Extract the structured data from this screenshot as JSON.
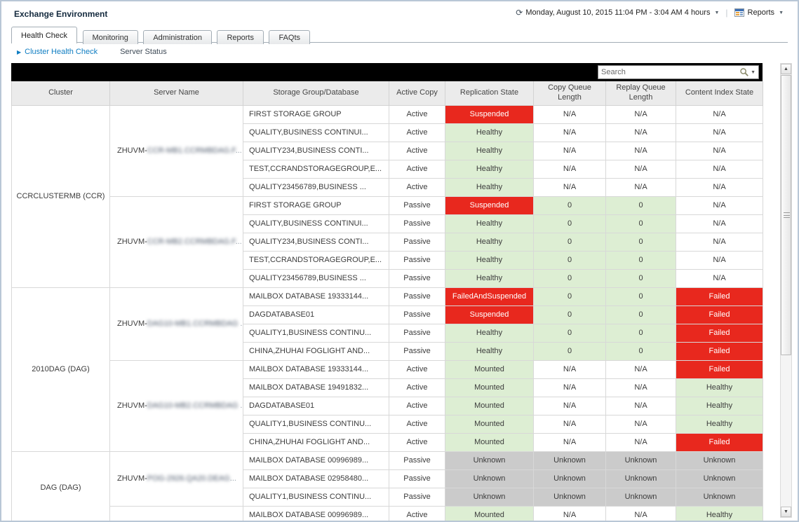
{
  "header": {
    "title": "Exchange Environment",
    "timerange": "Monday, August 10, 2015 11:04 PM - 3:04 AM 4 hours",
    "reports_label": "Reports"
  },
  "icons": {
    "timerange_glyph": "⟳",
    "caret_glyph": "▼",
    "subnav_triangle": "▶",
    "scroll_up": "▲",
    "scroll_down": "▼"
  },
  "colors": {
    "status_red": "#e8281e",
    "status_green": "#ddeed3",
    "status_gray": "#cbcbcb",
    "link_blue": "#0f7dc2",
    "toolbar_black": "#000000"
  },
  "tabs": [
    {
      "label": "Health Check",
      "active": true
    },
    {
      "label": "Monitoring",
      "active": false
    },
    {
      "label": "Administration",
      "active": false
    },
    {
      "label": "Reports",
      "active": false
    },
    {
      "label": "FAQts",
      "active": false
    }
  ],
  "subnav": {
    "active_item": "Cluster Health Check",
    "other_item": "Server Status"
  },
  "search": {
    "placeholder": "Search"
  },
  "table": {
    "columns": [
      "Cluster",
      "Server Name",
      "Storage Group/Database",
      "Active Copy",
      "Replication State",
      "Copy Queue Length",
      "Replay Queue Length",
      "Content Index State"
    ],
    "groups": [
      {
        "cluster": "CCRCLUSTERMB (CCR)",
        "servers": [
          {
            "name_prefix": "ZHUVM-",
            "name_blur": "CCR-MB1.CCRMBDAG.F",
            "name_suffix": "...",
            "rows": [
              {
                "sg": "FIRST STORAGE GROUP",
                "copy": "Active",
                "rs": {
                  "t": "Suspended",
                  "s": "red"
                },
                "cq": {
                  "t": "N/A",
                  "s": "plain"
                },
                "rq": {
                  "t": "N/A",
                  "s": "plain"
                },
                "ci": {
                  "t": "N/A",
                  "s": "plain"
                }
              },
              {
                "sg": "QUALITY,BUSINESS CONTINUI...",
                "copy": "Active",
                "rs": {
                  "t": "Healthy",
                  "s": "green"
                },
                "cq": {
                  "t": "N/A",
                  "s": "plain"
                },
                "rq": {
                  "t": "N/A",
                  "s": "plain"
                },
                "ci": {
                  "t": "N/A",
                  "s": "plain"
                }
              },
              {
                "sg": "QUALITY234,BUSINESS CONTI...",
                "copy": "Active",
                "rs": {
                  "t": "Healthy",
                  "s": "green"
                },
                "cq": {
                  "t": "N/A",
                  "s": "plain"
                },
                "rq": {
                  "t": "N/A",
                  "s": "plain"
                },
                "ci": {
                  "t": "N/A",
                  "s": "plain"
                }
              },
              {
                "sg": "TEST,CCRANDSTORAGEGROUP,E...",
                "copy": "Active",
                "rs": {
                  "t": "Healthy",
                  "s": "green"
                },
                "cq": {
                  "t": "N/A",
                  "s": "plain"
                },
                "rq": {
                  "t": "N/A",
                  "s": "plain"
                },
                "ci": {
                  "t": "N/A",
                  "s": "plain"
                }
              },
              {
                "sg": "QUALITY23456789,BUSINESS ...",
                "copy": "Active",
                "rs": {
                  "t": "Healthy",
                  "s": "green"
                },
                "cq": {
                  "t": "N/A",
                  "s": "plain"
                },
                "rq": {
                  "t": "N/A",
                  "s": "plain"
                },
                "ci": {
                  "t": "N/A",
                  "s": "plain"
                }
              }
            ]
          },
          {
            "name_prefix": "ZHUVM-",
            "name_blur": "CCR-MB2.CCRMBDAG.F",
            "name_suffix": "...",
            "rows": [
              {
                "sg": "FIRST STORAGE GROUP",
                "copy": "Passive",
                "rs": {
                  "t": "Suspended",
                  "s": "red"
                },
                "cq": {
                  "t": "0",
                  "s": "green"
                },
                "rq": {
                  "t": "0",
                  "s": "green"
                },
                "ci": {
                  "t": "N/A",
                  "s": "plain"
                }
              },
              {
                "sg": "QUALITY,BUSINESS CONTINUI...",
                "copy": "Passive",
                "rs": {
                  "t": "Healthy",
                  "s": "green"
                },
                "cq": {
                  "t": "0",
                  "s": "green"
                },
                "rq": {
                  "t": "0",
                  "s": "green"
                },
                "ci": {
                  "t": "N/A",
                  "s": "plain"
                }
              },
              {
                "sg": "QUALITY234,BUSINESS CONTI...",
                "copy": "Passive",
                "rs": {
                  "t": "Healthy",
                  "s": "green"
                },
                "cq": {
                  "t": "0",
                  "s": "green"
                },
                "rq": {
                  "t": "0",
                  "s": "green"
                },
                "ci": {
                  "t": "N/A",
                  "s": "plain"
                }
              },
              {
                "sg": "TEST,CCRANDSTORAGEGROUP,E...",
                "copy": "Passive",
                "rs": {
                  "t": "Healthy",
                  "s": "green"
                },
                "cq": {
                  "t": "0",
                  "s": "green"
                },
                "rq": {
                  "t": "0",
                  "s": "green"
                },
                "ci": {
                  "t": "N/A",
                  "s": "plain"
                }
              },
              {
                "sg": "QUALITY23456789,BUSINESS ...",
                "copy": "Passive",
                "rs": {
                  "t": "Healthy",
                  "s": "green"
                },
                "cq": {
                  "t": "0",
                  "s": "green"
                },
                "rq": {
                  "t": "0",
                  "s": "green"
                },
                "ci": {
                  "t": "N/A",
                  "s": "plain"
                }
              }
            ]
          }
        ]
      },
      {
        "cluster": "2010DAG (DAG)",
        "servers": [
          {
            "name_prefix": "ZHUVM-",
            "name_blur": "DAG10-MB1.CCRMBDAG",
            "name_suffix": " ..",
            "rows": [
              {
                "sg": "MAILBOX DATABASE 19333144...",
                "copy": "Passive",
                "rs": {
                  "t": "FailedAndSuspended",
                  "s": "red"
                },
                "cq": {
                  "t": "0",
                  "s": "green"
                },
                "rq": {
                  "t": "0",
                  "s": "green"
                },
                "ci": {
                  "t": "Failed",
                  "s": "red"
                }
              },
              {
                "sg": "DAGDATABASE01",
                "copy": "Passive",
                "rs": {
                  "t": "Suspended",
                  "s": "red"
                },
                "cq": {
                  "t": "0",
                  "s": "green"
                },
                "rq": {
                  "t": "0",
                  "s": "green"
                },
                "ci": {
                  "t": "Failed",
                  "s": "red"
                }
              },
              {
                "sg": "QUALITY1,BUSINESS CONTINU...",
                "copy": "Passive",
                "rs": {
                  "t": "Healthy",
                  "s": "green"
                },
                "cq": {
                  "t": "0",
                  "s": "green"
                },
                "rq": {
                  "t": "0",
                  "s": "green"
                },
                "ci": {
                  "t": "Failed",
                  "s": "red"
                }
              },
              {
                "sg": "CHINA,ZHUHAI FOGLIGHT AND...",
                "copy": "Passive",
                "rs": {
                  "t": "Healthy",
                  "s": "green"
                },
                "cq": {
                  "t": "0",
                  "s": "green"
                },
                "rq": {
                  "t": "0",
                  "s": "green"
                },
                "ci": {
                  "t": "Failed",
                  "s": "red"
                }
              }
            ]
          },
          {
            "name_prefix": "ZHUVM-",
            "name_blur": "DAG10-MB2.CCRMBDAG",
            "name_suffix": " ..",
            "rows": [
              {
                "sg": "MAILBOX DATABASE 19333144...",
                "copy": "Active",
                "rs": {
                  "t": "Mounted",
                  "s": "green"
                },
                "cq": {
                  "t": "N/A",
                  "s": "plain"
                },
                "rq": {
                  "t": "N/A",
                  "s": "plain"
                },
                "ci": {
                  "t": "Failed",
                  "s": "red"
                }
              },
              {
                "sg": "MAILBOX DATABASE 19491832...",
                "copy": "Active",
                "rs": {
                  "t": "Mounted",
                  "s": "green"
                },
                "cq": {
                  "t": "N/A",
                  "s": "plain"
                },
                "rq": {
                  "t": "N/A",
                  "s": "plain"
                },
                "ci": {
                  "t": "Healthy",
                  "s": "green"
                }
              },
              {
                "sg": "DAGDATABASE01",
                "copy": "Active",
                "rs": {
                  "t": "Mounted",
                  "s": "green"
                },
                "cq": {
                  "t": "N/A",
                  "s": "plain"
                },
                "rq": {
                  "t": "N/A",
                  "s": "plain"
                },
                "ci": {
                  "t": "Healthy",
                  "s": "green"
                }
              },
              {
                "sg": "QUALITY1,BUSINESS CONTINU...",
                "copy": "Active",
                "rs": {
                  "t": "Mounted",
                  "s": "green"
                },
                "cq": {
                  "t": "N/A",
                  "s": "plain"
                },
                "rq": {
                  "t": "N/A",
                  "s": "plain"
                },
                "ci": {
                  "t": "Healthy",
                  "s": "green"
                }
              },
              {
                "sg": "CHINA,ZHUHAI FOGLIGHT AND...",
                "copy": "Active",
                "rs": {
                  "t": "Mounted",
                  "s": "green"
                },
                "cq": {
                  "t": "N/A",
                  "s": "plain"
                },
                "rq": {
                  "t": "N/A",
                  "s": "plain"
                },
                "ci": {
                  "t": "Failed",
                  "s": "red"
                }
              }
            ]
          }
        ]
      },
      {
        "cluster": "DAG (DAG)",
        "servers": [
          {
            "name_prefix": "ZHUVM-",
            "name_blur": "POG-2926.QA20.DEAG",
            "name_suffix": "...",
            "rows": [
              {
                "sg": "MAILBOX DATABASE 00996989...",
                "copy": "Passive",
                "rs": {
                  "t": "Unknown",
                  "s": "gray"
                },
                "cq": {
                  "t": "Unknown",
                  "s": "gray"
                },
                "rq": {
                  "t": "Unknown",
                  "s": "gray"
                },
                "ci": {
                  "t": "Unknown",
                  "s": "gray"
                }
              },
              {
                "sg": "MAILBOX DATABASE 02958480...",
                "copy": "Passive",
                "rs": {
                  "t": "Unknown",
                  "s": "gray"
                },
                "cq": {
                  "t": "Unknown",
                  "s": "gray"
                },
                "rq": {
                  "t": "Unknown",
                  "s": "gray"
                },
                "ci": {
                  "t": "Unknown",
                  "s": "gray"
                }
              },
              {
                "sg": "QUALITY1,BUSINESS CONTINU...",
                "copy": "Passive",
                "rs": {
                  "t": "Unknown",
                  "s": "gray"
                },
                "cq": {
                  "t": "Unknown",
                  "s": "gray"
                },
                "rq": {
                  "t": "Unknown",
                  "s": "gray"
                },
                "ci": {
                  "t": "Unknown",
                  "s": "gray"
                }
              }
            ]
          },
          {
            "name_prefix": "",
            "name_blur": "",
            "name_suffix": "",
            "rows": [
              {
                "sg": "MAILBOX DATABASE 00996989...",
                "copy": "Active",
                "rs": {
                  "t": "Mounted",
                  "s": "green"
                },
                "cq": {
                  "t": "N/A",
                  "s": "plain"
                },
                "rq": {
                  "t": "N/A",
                  "s": "plain"
                },
                "ci": {
                  "t": "Healthy",
                  "s": "green"
                }
              }
            ]
          }
        ]
      }
    ]
  }
}
